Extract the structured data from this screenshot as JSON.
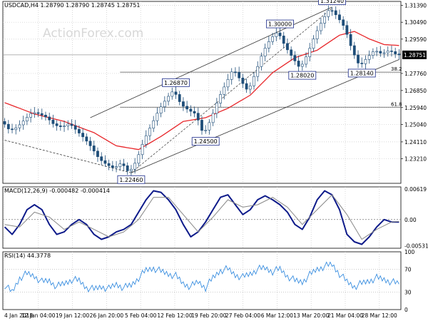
{
  "window": {
    "title": "USDCAD,H4  1.28790 1.28790 1.28745 1.28751",
    "watermark": "ActionForex.com"
  },
  "colors": {
    "candle": "#1f4e79",
    "ema": "#e8262a",
    "channel": "#333333",
    "macd": "#0d1a8a",
    "signal": "#888888",
    "rsi": "#3b8fe0",
    "price_label_bg": "#000000"
  },
  "chart_data": [
    {
      "type": "candlestick",
      "panel": "price",
      "title": "USDCAD,H4  1.28790 1.28790 1.28745 1.28751",
      "ylim": [
        1.219,
        1.316
      ],
      "y_ticks": [
        1.3139,
        1.3049,
        1.2959,
        1.28751,
        1.2776,
        1.2685,
        1.2594,
        1.2504,
        1.2411,
        1.2321
      ],
      "y_tick_labels": [
        "1.31390",
        "1.30490",
        "1.29590",
        "1.28751",
        "1.27760",
        "1.26850",
        "1.25940",
        "1.25040",
        "1.24110",
        "1.23210"
      ],
      "current_price": "1.28751",
      "x_tick_labels": [
        "4 Jan 2018",
        "12 Jan 04:00",
        "19 Jan 12:00",
        "26 Jan 20:00",
        "5 Feb 04:00",
        "12 Feb 12:00",
        "19 Feb 20:00",
        "27 Feb 04:00",
        "6 Mar 12:00",
        "13 Mar 20:00",
        "21 Mar 04:00",
        "28 Mar 12:00"
      ],
      "swing_points": [
        1.2246,
        1.2687,
        1.245,
        1.3,
        1.2802,
        1.3124,
        1.2814
      ],
      "swing_labels": [
        "1.22460",
        "1.26870",
        "1.24500",
        "1.30000",
        "1.28020",
        "1.31240",
        "1.28140"
      ],
      "fib_levels": [
        {
          "label": "38.2",
          "value": 1.2783
        },
        {
          "label": "61.8",
          "value": 1.2596
        }
      ],
      "close_path": [
        [
          0,
          1.252
        ],
        [
          2,
          1.247
        ],
        [
          4,
          1.249
        ],
        [
          6,
          1.253
        ],
        [
          8,
          1.257
        ],
        [
          10,
          1.256
        ],
        [
          12,
          1.254
        ],
        [
          14,
          1.25
        ],
        [
          16,
          1.249
        ],
        [
          18,
          1.251
        ],
        [
          20,
          1.247
        ],
        [
          22,
          1.243
        ],
        [
          24,
          1.238
        ],
        [
          26,
          1.232
        ],
        [
          28,
          1.229
        ],
        [
          30,
          1.227
        ],
        [
          32,
          1.23
        ],
        [
          34,
          1.2246
        ],
        [
          36,
          1.231
        ],
        [
          38,
          1.242
        ],
        [
          40,
          1.25
        ],
        [
          42,
          1.258
        ],
        [
          44,
          1.264
        ],
        [
          46,
          1.2687
        ],
        [
          48,
          1.261
        ],
        [
          50,
          1.258
        ],
        [
          52,
          1.256
        ],
        [
          54,
          1.245
        ],
        [
          56,
          1.253
        ],
        [
          58,
          1.264
        ],
        [
          60,
          1.272
        ],
        [
          62,
          1.28
        ],
        [
          64,
          1.274
        ],
        [
          66,
          1.268
        ],
        [
          68,
          1.278
        ],
        [
          70,
          1.289
        ],
        [
          72,
          1.296
        ],
        [
          74,
          1.3
        ],
        [
          76,
          1.292
        ],
        [
          78,
          1.286
        ],
        [
          80,
          1.2802
        ],
        [
          82,
          1.288
        ],
        [
          84,
          1.298
        ],
        [
          86,
          1.306
        ],
        [
          88,
          1.3124
        ],
        [
          90,
          1.308
        ],
        [
          92,
          1.302
        ],
        [
          94,
          1.29
        ],
        [
          96,
          1.2814
        ],
        [
          98,
          1.286
        ],
        [
          100,
          1.29
        ],
        [
          102,
          1.288
        ],
        [
          104,
          1.29
        ],
        [
          106,
          1.2875
        ]
      ],
      "ema_path": [
        [
          0,
          1.262
        ],
        [
          8,
          1.256
        ],
        [
          16,
          1.252
        ],
        [
          24,
          1.246
        ],
        [
          30,
          1.239
        ],
        [
          36,
          1.237
        ],
        [
          42,
          1.244
        ],
        [
          48,
          1.252
        ],
        [
          54,
          1.254
        ],
        [
          60,
          1.259
        ],
        [
          66,
          1.266
        ],
        [
          72,
          1.278
        ],
        [
          78,
          1.286
        ],
        [
          84,
          1.29
        ],
        [
          90,
          1.298
        ],
        [
          94,
          1.3
        ],
        [
          98,
          1.296
        ],
        [
          102,
          1.293
        ],
        [
          106,
          1.2925
        ]
      ],
      "channel": {
        "lower": [
          [
            34,
            1.2246
          ],
          [
            106,
            1.285
          ]
        ],
        "upper": [
          [
            23,
            1.254
          ],
          [
            88,
            1.313
          ]
        ],
        "descending": [
          [
            0,
            1.242
          ],
          [
            34,
            1.2246
          ]
        ]
      },
      "horizontal_line": 1.28751
    },
    {
      "type": "line",
      "panel": "macd",
      "title": "MACD(12,26,9) -0.000482 -0.000414",
      "ylim": [
        -0.0058,
        0.0066
      ],
      "y_ticks": [
        0.00619,
        0.0,
        -0.00531
      ],
      "y_tick_labels": [
        "0.00619",
        "0.00",
        "-0.00531"
      ],
      "zero_line": 0.0,
      "series": [
        {
          "role": "macd",
          "x": [
            0,
            2,
            4,
            6,
            8,
            10,
            12,
            14,
            16,
            18,
            20,
            22,
            24,
            26,
            28,
            30,
            32,
            34,
            36,
            38,
            40,
            42,
            44,
            46,
            48,
            50,
            52,
            54,
            56,
            58,
            60,
            62,
            64,
            66,
            68,
            70,
            72,
            74,
            76,
            78,
            80,
            82,
            84,
            86,
            88,
            90,
            92,
            94,
            96,
            98,
            100,
            102,
            104,
            106
          ],
          "values": [
            -0.0015,
            -0.003,
            -0.001,
            0.002,
            0.003,
            0.002,
            -0.001,
            -0.003,
            -0.0025,
            -0.001,
            0.0,
            -0.001,
            -0.003,
            -0.004,
            -0.0035,
            -0.0025,
            -0.002,
            -0.001,
            0.0015,
            0.004,
            0.0058,
            0.0055,
            0.004,
            0.002,
            -0.001,
            -0.0035,
            -0.0025,
            -0.0005,
            0.002,
            0.0045,
            0.005,
            0.003,
            0.001,
            0.002,
            0.004,
            0.0048,
            0.004,
            0.003,
            0.0015,
            -0.001,
            -0.002,
            0.0005,
            0.004,
            0.0058,
            0.005,
            0.002,
            -0.003,
            -0.0045,
            -0.005,
            -0.0035,
            -0.0015,
            0.0,
            -0.0005,
            -0.0005
          ]
        },
        {
          "role": "signal",
          "x": [
            0,
            4,
            8,
            12,
            16,
            20,
            24,
            28,
            32,
            36,
            40,
            44,
            48,
            52,
            56,
            60,
            64,
            68,
            72,
            76,
            80,
            84,
            88,
            92,
            96,
            100,
            104,
            106
          ],
          "values": [
            -0.001,
            -0.0015,
            0.0015,
            0.0005,
            -0.002,
            -0.0005,
            -0.002,
            -0.0035,
            -0.0025,
            0.0,
            0.0045,
            0.0045,
            0.001,
            -0.0025,
            0.0005,
            0.004,
            0.0025,
            0.003,
            0.0045,
            0.0025,
            -0.001,
            0.002,
            0.005,
            0.001,
            -0.004,
            -0.002,
            -0.0005,
            -0.0004
          ]
        }
      ]
    },
    {
      "type": "line",
      "panel": "rsi",
      "title": "RSI(14) 44.3778",
      "ylim": [
        0,
        100
      ],
      "y_ticks": [
        100,
        70,
        30,
        0
      ],
      "y_tick_labels": [
        "100",
        "70",
        "30",
        "0"
      ],
      "levels": [
        70,
        30
      ],
      "series": [
        {
          "role": "rsi",
          "x": [
            0,
            2,
            4,
            6,
            8,
            10,
            12,
            14,
            16,
            18,
            20,
            22,
            24,
            26,
            28,
            30,
            32,
            34,
            36,
            38,
            40,
            42,
            44,
            46,
            48,
            50,
            52,
            54,
            56,
            58,
            60,
            62,
            64,
            66,
            68,
            70,
            72,
            74,
            76,
            78,
            80,
            82,
            84,
            86,
            88,
            90,
            92,
            94,
            96,
            98,
            100,
            102,
            104,
            106
          ],
          "values": [
            42,
            30,
            55,
            62,
            58,
            48,
            50,
            40,
            45,
            52,
            50,
            38,
            35,
            40,
            36,
            44,
            38,
            42,
            55,
            68,
            72,
            66,
            62,
            58,
            45,
            40,
            48,
            38,
            55,
            68,
            70,
            60,
            56,
            62,
            70,
            72,
            66,
            70,
            58,
            50,
            48,
            60,
            70,
            75,
            78,
            62,
            48,
            40,
            45,
            50,
            55,
            52,
            48,
            44
          ]
        }
      ]
    }
  ]
}
